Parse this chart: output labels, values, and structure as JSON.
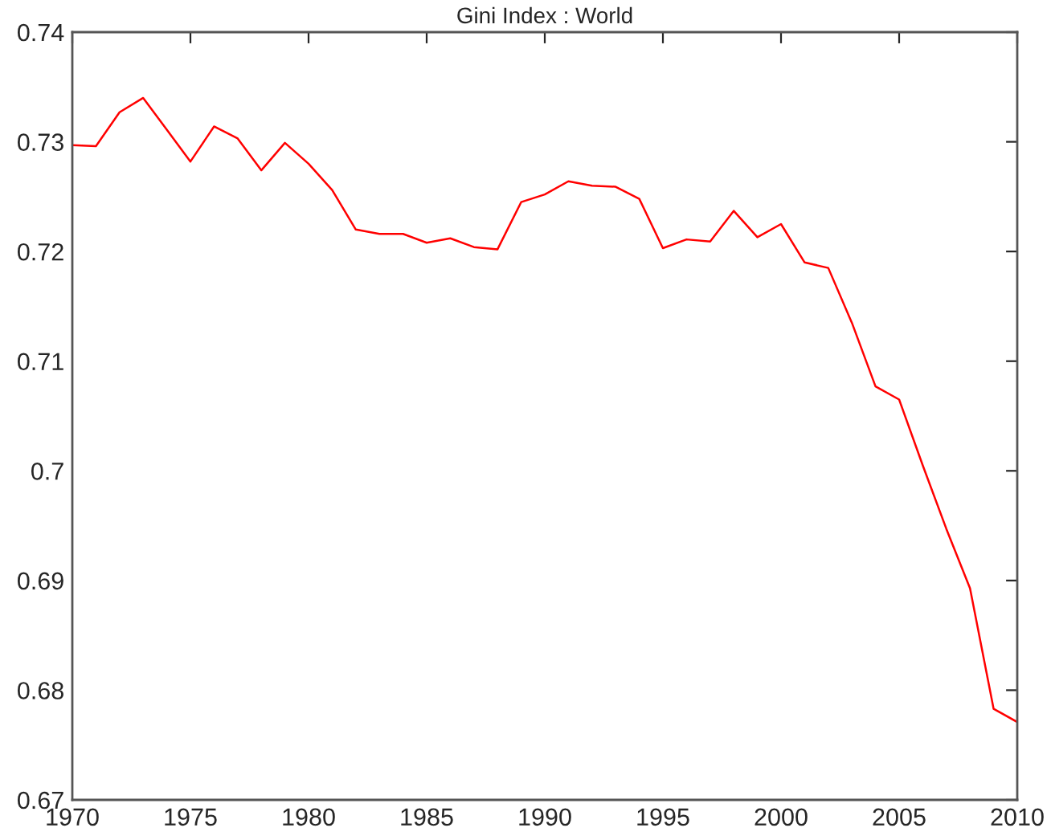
{
  "chart_data": {
    "type": "line",
    "title": "Gini Index : World",
    "x": [
      1970,
      1971,
      1972,
      1973,
      1974,
      1975,
      1976,
      1977,
      1978,
      1979,
      1980,
      1981,
      1982,
      1983,
      1984,
      1985,
      1986,
      1987,
      1988,
      1989,
      1990,
      1991,
      1992,
      1993,
      1994,
      1995,
      1996,
      1997,
      1998,
      1999,
      2000,
      2001,
      2002,
      2003,
      2004,
      2005,
      2006,
      2007,
      2008,
      2009,
      2010
    ],
    "series": [
      {
        "color": "#ff0000",
        "values": [
          0.7297,
          0.7296,
          0.7327,
          0.734,
          0.7311,
          0.7282,
          0.7314,
          0.7303,
          0.7274,
          0.7299,
          0.728,
          0.7256,
          0.722,
          0.7216,
          0.7216,
          0.7208,
          0.7212,
          0.7204,
          0.7202,
          0.7245,
          0.7252,
          0.7264,
          0.726,
          0.7259,
          0.7248,
          0.7203,
          0.7211,
          0.7209,
          0.7237,
          0.7213,
          0.7225,
          0.719,
          0.7185,
          0.7135,
          0.7077,
          0.7065,
          0.7005,
          0.6947,
          0.6893,
          0.6783,
          0.6771
        ]
      }
    ],
    "xlim": [
      1970,
      2010
    ],
    "xticks": [
      1970,
      1975,
      1980,
      1985,
      1990,
      1995,
      2000,
      2005,
      2010
    ],
    "ylim": [
      0.67,
      0.74
    ],
    "yticks": [
      0.67,
      0.68,
      0.69,
      {
        "value": 0.7,
        "label": "0.7"
      },
      0.71,
      0.72,
      0.73,
      0.74
    ],
    "grid": false,
    "legend": false
  }
}
